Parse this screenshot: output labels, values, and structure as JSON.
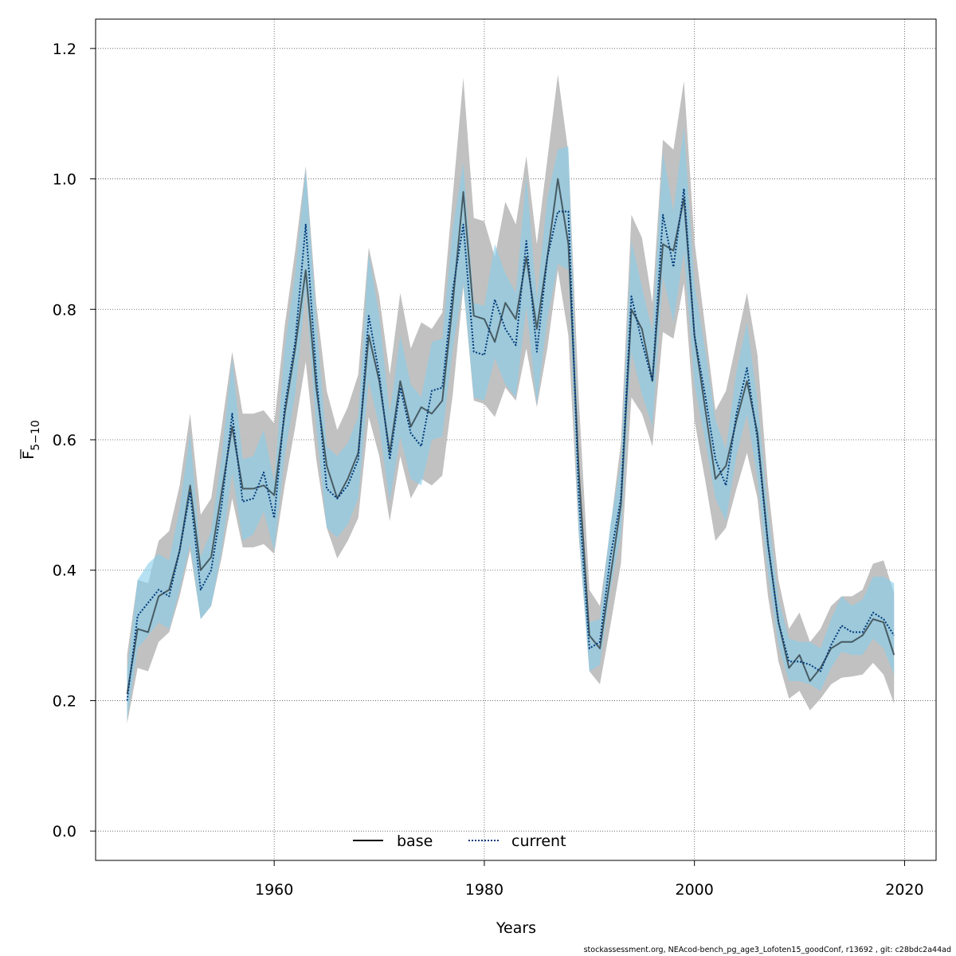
{
  "footer_text": "stockassessment.org, NEAcod-bench_pg_age3_Lofoten15_goodConf, r13692 , git: c28bdc2a44ad",
  "chart_data": {
    "type": "line",
    "xlabel": "Years",
    "ylabel_main": "F",
    "ylabel_sub": "5−10",
    "xlim": [
      1943,
      2023
    ],
    "ylim": [
      -0.045,
      1.245
    ],
    "xticks": [
      1960,
      1980,
      2000,
      2020
    ],
    "xtick_labels": [
      "1960",
      "1980",
      "2000",
      "2020"
    ],
    "yticks": [
      0.0,
      0.2,
      0.4,
      0.6,
      0.8,
      1.0,
      1.2
    ],
    "ytick_labels": [
      "0.0",
      "0.2",
      "0.4",
      "0.6",
      "0.8",
      "1.0",
      "1.2"
    ],
    "grid": true,
    "legend_position": "bottom-center",
    "colors": {
      "base_line": "#000000",
      "current_line": "#003a7a",
      "base_band": "#bebebe",
      "current_band": "#87ceeb"
    },
    "x": [
      1946,
      1947,
      1948,
      1949,
      1950,
      1951,
      1952,
      1953,
      1954,
      1955,
      1956,
      1957,
      1958,
      1959,
      1960,
      1961,
      1962,
      1963,
      1964,
      1965,
      1966,
      1967,
      1968,
      1969,
      1970,
      1971,
      1972,
      1973,
      1974,
      1975,
      1976,
      1977,
      1978,
      1979,
      1980,
      1981,
      1982,
      1983,
      1984,
      1985,
      1986,
      1987,
      1988,
      1989,
      1990,
      1991,
      1992,
      1993,
      1994,
      1995,
      1996,
      1997,
      1998,
      1999,
      2000,
      2001,
      2002,
      2003,
      2004,
      2005,
      2006,
      2007,
      2008,
      2009,
      2010,
      2011,
      2012,
      2013,
      2014,
      2015,
      2016,
      2017,
      2018,
      2019
    ],
    "series": [
      {
        "name": "base",
        "style": "solid",
        "values": [
          0.21,
          0.31,
          0.305,
          0.36,
          0.37,
          0.43,
          0.53,
          0.4,
          0.42,
          0.52,
          0.62,
          0.525,
          0.525,
          0.53,
          0.515,
          0.64,
          0.74,
          0.86,
          0.68,
          0.56,
          0.51,
          0.54,
          0.58,
          0.76,
          0.69,
          0.58,
          0.69,
          0.62,
          0.65,
          0.64,
          0.66,
          0.81,
          0.98,
          0.79,
          0.785,
          0.75,
          0.81,
          0.785,
          0.88,
          0.77,
          0.88,
          1.0,
          0.9,
          0.55,
          0.3,
          0.28,
          0.39,
          0.5,
          0.8,
          0.77,
          0.69,
          0.9,
          0.89,
          0.97,
          0.76,
          0.65,
          0.54,
          0.56,
          0.63,
          0.69,
          0.61,
          0.44,
          0.32,
          0.25,
          0.27,
          0.23,
          0.25,
          0.28,
          0.29,
          0.29,
          0.3,
          0.325,
          0.32,
          0.27
        ],
        "lower": [
          0.165,
          0.25,
          0.245,
          0.29,
          0.305,
          0.36,
          0.43,
          0.325,
          0.345,
          0.42,
          0.51,
          0.435,
          0.435,
          0.44,
          0.425,
          0.53,
          0.62,
          0.72,
          0.57,
          0.465,
          0.418,
          0.445,
          0.48,
          0.635,
          0.575,
          0.475,
          0.575,
          0.51,
          0.54,
          0.53,
          0.545,
          0.67,
          0.835,
          0.66,
          0.655,
          0.635,
          0.68,
          0.66,
          0.74,
          0.65,
          0.74,
          0.86,
          0.76,
          0.45,
          0.245,
          0.225,
          0.315,
          0.41,
          0.665,
          0.64,
          0.59,
          0.765,
          0.755,
          0.84,
          0.63,
          0.54,
          0.445,
          0.465,
          0.525,
          0.58,
          0.51,
          0.36,
          0.26,
          0.203,
          0.215,
          0.185,
          0.203,
          0.225,
          0.235,
          0.237,
          0.24,
          0.258,
          0.24,
          0.195
        ],
        "upper": [
          0.27,
          0.385,
          0.38,
          0.445,
          0.46,
          0.53,
          0.64,
          0.485,
          0.51,
          0.62,
          0.735,
          0.64,
          0.64,
          0.645,
          0.625,
          0.775,
          0.89,
          1.02,
          0.81,
          0.675,
          0.615,
          0.65,
          0.7,
          0.895,
          0.82,
          0.7,
          0.825,
          0.74,
          0.78,
          0.77,
          0.795,
          0.975,
          1.155,
          0.94,
          0.935,
          0.88,
          0.965,
          0.93,
          1.035,
          0.9,
          1.03,
          1.16,
          1.04,
          0.66,
          0.37,
          0.345,
          0.465,
          0.595,
          0.945,
          0.91,
          0.81,
          1.06,
          1.045,
          1.15,
          0.905,
          0.775,
          0.645,
          0.675,
          0.75,
          0.825,
          0.73,
          0.53,
          0.385,
          0.31,
          0.335,
          0.29,
          0.31,
          0.345,
          0.36,
          0.36,
          0.37,
          0.41,
          0.415,
          0.365
        ]
      },
      {
        "name": "current",
        "style": "dotted",
        "values": [
          0.2,
          0.33,
          0.35,
          0.37,
          0.36,
          0.43,
          0.52,
          0.37,
          0.4,
          0.5,
          0.64,
          0.505,
          0.51,
          0.55,
          0.48,
          0.65,
          0.75,
          0.93,
          0.7,
          0.525,
          0.51,
          0.53,
          0.57,
          0.79,
          0.7,
          0.57,
          0.68,
          0.61,
          0.59,
          0.675,
          0.68,
          0.83,
          0.93,
          0.735,
          0.73,
          0.815,
          0.77,
          0.745,
          0.905,
          0.735,
          0.88,
          0.95,
          0.95,
          0.51,
          0.28,
          0.29,
          0.42,
          0.51,
          0.82,
          0.75,
          0.69,
          0.945,
          0.865,
          0.985,
          0.76,
          0.67,
          0.57,
          0.53,
          0.64,
          0.71,
          0.6,
          0.44,
          0.32,
          0.26,
          0.26,
          0.255,
          0.245,
          0.285,
          0.315,
          0.305,
          0.305,
          0.335,
          0.325,
          0.3
        ],
        "lower": [
          0.17,
          0.28,
          0.3,
          0.32,
          0.31,
          0.37,
          0.44,
          0.325,
          0.345,
          0.43,
          0.55,
          0.445,
          0.455,
          0.49,
          0.43,
          0.575,
          0.67,
          0.83,
          0.62,
          0.465,
          0.45,
          0.47,
          0.51,
          0.69,
          0.62,
          0.505,
          0.605,
          0.54,
          0.53,
          0.6,
          0.605,
          0.74,
          0.84,
          0.665,
          0.66,
          0.725,
          0.685,
          0.665,
          0.805,
          0.655,
          0.785,
          0.87,
          0.86,
          0.455,
          0.245,
          0.255,
          0.37,
          0.455,
          0.735,
          0.67,
          0.62,
          0.85,
          0.78,
          0.89,
          0.685,
          0.6,
          0.51,
          0.475,
          0.575,
          0.64,
          0.54,
          0.395,
          0.285,
          0.23,
          0.23,
          0.225,
          0.215,
          0.25,
          0.275,
          0.27,
          0.27,
          0.295,
          0.28,
          0.24
        ],
        "upper": [
          0.245,
          0.385,
          0.41,
          0.425,
          0.415,
          0.495,
          0.61,
          0.42,
          0.46,
          0.575,
          0.725,
          0.57,
          0.575,
          0.615,
          0.535,
          0.74,
          0.855,
          1.015,
          0.785,
          0.59,
          0.575,
          0.595,
          0.635,
          0.885,
          0.79,
          0.64,
          0.76,
          0.685,
          0.665,
          0.75,
          0.755,
          0.925,
          1.025,
          0.81,
          0.805,
          0.9,
          0.855,
          0.825,
          1.005,
          0.815,
          0.97,
          1.045,
          1.05,
          0.565,
          0.32,
          0.325,
          0.47,
          0.565,
          0.905,
          0.835,
          0.765,
          1.04,
          0.95,
          1.08,
          0.84,
          0.74,
          0.63,
          0.585,
          0.705,
          0.78,
          0.66,
          0.49,
          0.355,
          0.295,
          0.29,
          0.29,
          0.28,
          0.325,
          0.36,
          0.345,
          0.355,
          0.39,
          0.39,
          0.38
        ]
      }
    ]
  }
}
